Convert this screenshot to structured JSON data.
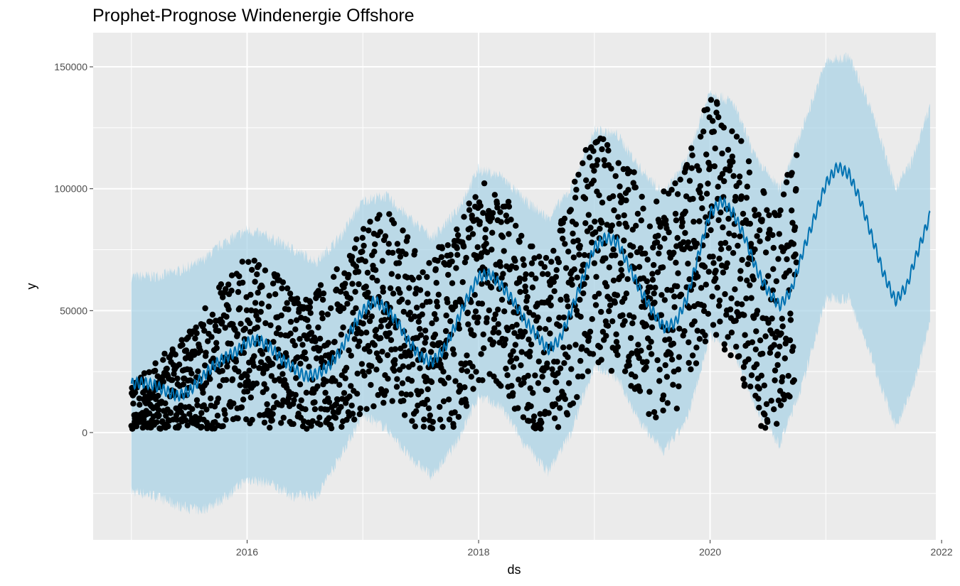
{
  "chart_data": {
    "type": "scatter",
    "title": "Prophet-Prognose Windenergie Offshore",
    "xlabel": "ds",
    "ylabel": "y",
    "x_ticks": [
      "2016",
      "2018",
      "2020",
      "2022"
    ],
    "y_ticks": [
      "0",
      "50000",
      "100000",
      "150000"
    ],
    "xlim": [
      2014.67,
      2021.95
    ],
    "ylim": [
      -44000,
      164000
    ],
    "grid": true,
    "legend": "none",
    "colors": {
      "panel": "#ebebeb",
      "grid": "#ffffff",
      "points": "#000000",
      "forecast_line": "#0072b2",
      "uncertainty": "#a6d2e6"
    },
    "series": [
      {
        "type": "scatter",
        "description_values": "daily observed values, approx 2015-01 to 2020-09",
        "seasonal_mean": [
          [
            2015.0,
            10000
          ],
          [
            2015.25,
            14000
          ],
          [
            2015.5,
            20000
          ],
          [
            2015.75,
            30000
          ],
          [
            2016.0,
            38000
          ],
          [
            2016.25,
            34000
          ],
          [
            2016.5,
            25000
          ],
          [
            2016.75,
            32000
          ],
          [
            2017.0,
            48000
          ],
          [
            2017.25,
            52000
          ],
          [
            2017.5,
            35000
          ],
          [
            2017.75,
            38000
          ],
          [
            2018.0,
            62000
          ],
          [
            2018.25,
            55000
          ],
          [
            2018.5,
            33000
          ],
          [
            2018.75,
            48000
          ],
          [
            2019.0,
            78000
          ],
          [
            2019.25,
            68000
          ],
          [
            2019.5,
            50000
          ],
          [
            2019.75,
            58000
          ],
          [
            2020.0,
            92000
          ],
          [
            2020.25,
            72000
          ],
          [
            2020.5,
            45000
          ],
          [
            2020.75,
            65000
          ]
        ],
        "spread": [
          [
            2015.0,
            9000
          ],
          [
            2015.5,
            25000
          ],
          [
            2016.0,
            35000
          ],
          [
            2016.5,
            30000
          ],
          [
            2017.0,
            40000
          ],
          [
            2017.5,
            38000
          ],
          [
            2018.0,
            42000
          ],
          [
            2018.5,
            40000
          ],
          [
            2019.0,
            48000
          ],
          [
            2019.5,
            45000
          ],
          [
            2020.0,
            50000
          ],
          [
            2020.75,
            50000
          ]
        ]
      },
      {
        "type": "line",
        "points": [
          [
            2015.0,
            20000
          ],
          [
            2015.1,
            20500
          ],
          [
            2015.2,
            19500
          ],
          [
            2015.3,
            17000
          ],
          [
            2015.4,
            15000
          ],
          [
            2015.5,
            17000
          ],
          [
            2015.6,
            22000
          ],
          [
            2015.7,
            27000
          ],
          [
            2015.8,
            30500
          ],
          [
            2015.9,
            33000
          ],
          [
            2016.0,
            37000
          ],
          [
            2016.1,
            38000
          ],
          [
            2016.2,
            35000
          ],
          [
            2016.3,
            30000
          ],
          [
            2016.4,
            26500
          ],
          [
            2016.5,
            23000
          ],
          [
            2016.6,
            24000
          ],
          [
            2016.7,
            27000
          ],
          [
            2016.8,
            33000
          ],
          [
            2016.9,
            42000
          ],
          [
            2017.0,
            50000
          ],
          [
            2017.1,
            54000
          ],
          [
            2017.2,
            51000
          ],
          [
            2017.3,
            45000
          ],
          [
            2017.4,
            37000
          ],
          [
            2017.5,
            31000
          ],
          [
            2017.6,
            29000
          ],
          [
            2017.7,
            34000
          ],
          [
            2017.8,
            44000
          ],
          [
            2017.9,
            55000
          ],
          [
            2018.0,
            64000
          ],
          [
            2018.1,
            65000
          ],
          [
            2018.2,
            60000
          ],
          [
            2018.3,
            54000
          ],
          [
            2018.4,
            46000
          ],
          [
            2018.5,
            40000
          ],
          [
            2018.6,
            34000
          ],
          [
            2018.7,
            38000
          ],
          [
            2018.8,
            50000
          ],
          [
            2018.9,
            63000
          ],
          [
            2019.0,
            76000
          ],
          [
            2019.1,
            80000
          ],
          [
            2019.2,
            78000
          ],
          [
            2019.3,
            68000
          ],
          [
            2019.4,
            58000
          ],
          [
            2019.5,
            50000
          ],
          [
            2019.6,
            43000
          ],
          [
            2019.7,
            45000
          ],
          [
            2019.8,
            55000
          ],
          [
            2019.9,
            73000
          ],
          [
            2020.0,
            90000
          ],
          [
            2020.1,
            95000
          ],
          [
            2020.2,
            90000
          ],
          [
            2020.3,
            80000
          ],
          [
            2020.4,
            67000
          ],
          [
            2020.5,
            58000
          ],
          [
            2020.6,
            52000
          ],
          [
            2020.7,
            58000
          ],
          [
            2020.8,
            74000
          ],
          [
            2020.9,
            88000
          ],
          [
            2021.0,
            102000
          ],
          [
            2021.1,
            109000
          ],
          [
            2021.2,
            106000
          ],
          [
            2021.3,
            95000
          ],
          [
            2021.4,
            80000
          ],
          [
            2021.5,
            65000
          ],
          [
            2021.6,
            54000
          ],
          [
            2021.7,
            60000
          ],
          [
            2021.75,
            68000
          ],
          [
            2021.8,
            75000
          ],
          [
            2021.85,
            82000
          ],
          [
            2021.9,
            89000
          ]
        ]
      },
      {
        "type": "area",
        "upper": [
          [
            2015.0,
            64000
          ],
          [
            2015.2,
            64000
          ],
          [
            2015.4,
            66000
          ],
          [
            2015.6,
            70000
          ],
          [
            2015.8,
            78000
          ],
          [
            2016.0,
            83000
          ],
          [
            2016.2,
            80000
          ],
          [
            2016.4,
            75000
          ],
          [
            2016.6,
            70000
          ],
          [
            2016.8,
            80000
          ],
          [
            2017.0,
            95000
          ],
          [
            2017.2,
            97000
          ],
          [
            2017.4,
            88000
          ],
          [
            2017.6,
            80000
          ],
          [
            2017.8,
            90000
          ],
          [
            2018.0,
            108000
          ],
          [
            2018.2,
            105000
          ],
          [
            2018.4,
            95000
          ],
          [
            2018.6,
            88000
          ],
          [
            2018.8,
            100000
          ],
          [
            2019.0,
            124000
          ],
          [
            2019.2,
            122000
          ],
          [
            2019.4,
            108000
          ],
          [
            2019.6,
            98000
          ],
          [
            2019.8,
            112000
          ],
          [
            2020.0,
            140000
          ],
          [
            2020.2,
            135000
          ],
          [
            2020.4,
            112000
          ],
          [
            2020.6,
            100000
          ],
          [
            2020.8,
            125000
          ],
          [
            2021.0,
            152000
          ],
          [
            2021.2,
            154000
          ],
          [
            2021.4,
            132000
          ],
          [
            2021.6,
            100000
          ],
          [
            2021.75,
            112000
          ],
          [
            2021.9,
            134000
          ]
        ],
        "lower": [
          [
            2015.0,
            -24000
          ],
          [
            2015.2,
            -26000
          ],
          [
            2015.4,
            -30000
          ],
          [
            2015.6,
            -32000
          ],
          [
            2015.8,
            -27000
          ],
          [
            2016.0,
            -19000
          ],
          [
            2016.2,
            -21000
          ],
          [
            2016.4,
            -26000
          ],
          [
            2016.6,
            -26000
          ],
          [
            2016.8,
            -10000
          ],
          [
            2017.0,
            7000
          ],
          [
            2017.2,
            2000
          ],
          [
            2017.4,
            -10000
          ],
          [
            2017.6,
            -18000
          ],
          [
            2017.8,
            -5000
          ],
          [
            2018.0,
            15000
          ],
          [
            2018.2,
            10000
          ],
          [
            2018.4,
            -5000
          ],
          [
            2018.6,
            -16000
          ],
          [
            2018.8,
            0
          ],
          [
            2019.0,
            28000
          ],
          [
            2019.2,
            22000
          ],
          [
            2019.4,
            4000
          ],
          [
            2019.6,
            -8000
          ],
          [
            2019.8,
            5000
          ],
          [
            2020.0,
            40000
          ],
          [
            2020.2,
            34000
          ],
          [
            2020.4,
            10000
          ],
          [
            2020.6,
            -5000
          ],
          [
            2020.8,
            20000
          ],
          [
            2021.0,
            55000
          ],
          [
            2021.2,
            55000
          ],
          [
            2021.4,
            30000
          ],
          [
            2021.6,
            2000
          ],
          [
            2021.75,
            18000
          ],
          [
            2021.9,
            45000
          ]
        ]
      }
    ]
  }
}
